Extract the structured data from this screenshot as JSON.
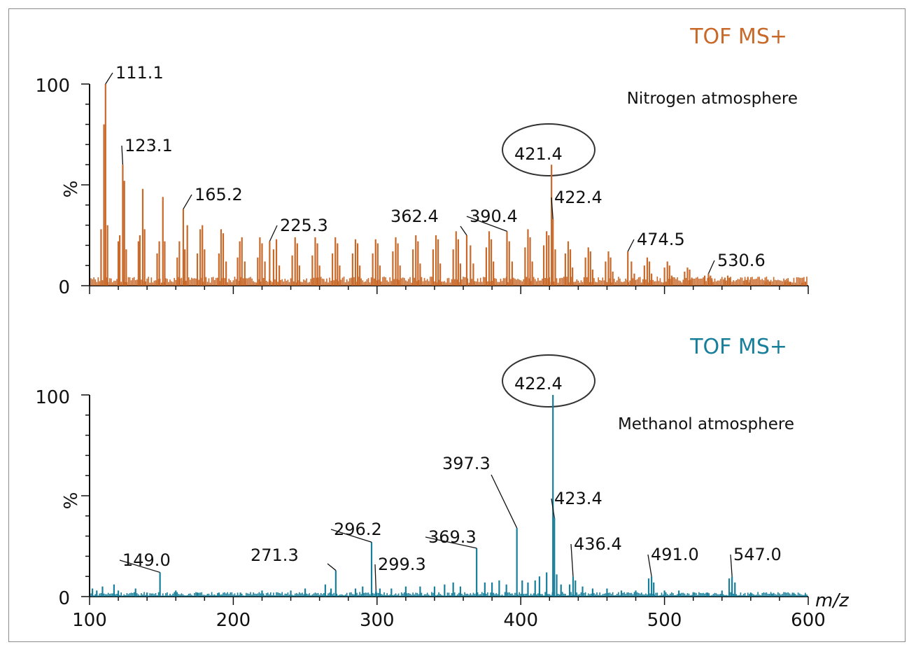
{
  "colors": {
    "nitrogen": "#c8692a",
    "methanol": "#177f9a",
    "axis": "#111111"
  },
  "chart_data": [
    {
      "type": "line",
      "title": "TOF MS+",
      "subtitle": "Nitrogen atmosphere",
      "ylabel": "%",
      "xlim": [
        100,
        600
      ],
      "ylim": [
        0,
        100
      ],
      "yticks": [
        "0",
        "100"
      ],
      "highlighted_peak": "421.4",
      "peak_labels": [
        {
          "mz": 111.1,
          "intensity": 100,
          "label": "111.1"
        },
        {
          "mz": 123.1,
          "intensity": 60,
          "label": "123.1"
        },
        {
          "mz": 165.2,
          "intensity": 38,
          "label": "165.2"
        },
        {
          "mz": 225.3,
          "intensity": 22,
          "label": "225.3"
        },
        {
          "mz": 362.4,
          "intensity": 25,
          "label": "362.4"
        },
        {
          "mz": 390.4,
          "intensity": 27,
          "label": "390.4"
        },
        {
          "mz": 421.4,
          "intensity": 60,
          "label": "421.4"
        },
        {
          "mz": 422.4,
          "intensity": 33,
          "label": "422.4"
        },
        {
          "mz": 474.5,
          "intensity": 17,
          "label": "474.5"
        },
        {
          "mz": 530.6,
          "intensity": 6,
          "label": "530.6"
        }
      ],
      "sticks": [
        [
          108,
          28
        ],
        [
          110,
          80
        ],
        [
          111.1,
          100
        ],
        [
          112.5,
          30
        ],
        [
          120,
          22
        ],
        [
          121,
          25
        ],
        [
          123.1,
          60
        ],
        [
          124.2,
          52
        ],
        [
          125.5,
          18
        ],
        [
          134,
          22
        ],
        [
          135,
          25
        ],
        [
          137,
          48
        ],
        [
          138.3,
          28
        ],
        [
          147,
          16
        ],
        [
          148.5,
          22
        ],
        [
          151,
          44
        ],
        [
          152.3,
          22
        ],
        [
          161,
          14
        ],
        [
          162.5,
          22
        ],
        [
          165.2,
          38
        ],
        [
          166.3,
          18
        ],
        [
          168,
          30
        ],
        [
          175,
          16
        ],
        [
          177,
          28
        ],
        [
          178.5,
          30
        ],
        [
          180,
          18
        ],
        [
          190,
          16
        ],
        [
          191.5,
          28
        ],
        [
          193,
          26
        ],
        [
          195,
          12
        ],
        [
          203,
          14
        ],
        [
          204.5,
          22
        ],
        [
          206,
          24
        ],
        [
          208,
          12
        ],
        [
          217,
          14
        ],
        [
          218.5,
          24
        ],
        [
          220,
          21
        ],
        [
          222,
          12
        ],
        [
          225.3,
          22
        ],
        [
          228,
          18
        ],
        [
          230,
          23
        ],
        [
          232,
          10
        ],
        [
          241,
          15
        ],
        [
          243,
          24
        ],
        [
          244.5,
          21
        ],
        [
          246,
          10
        ],
        [
          255,
          15
        ],
        [
          257,
          24
        ],
        [
          258.5,
          21
        ],
        [
          260,
          10
        ],
        [
          269,
          16
        ],
        [
          271,
          24
        ],
        [
          272.5,
          21
        ],
        [
          274,
          10
        ],
        [
          283,
          16
        ],
        [
          285,
          23
        ],
        [
          286.5,
          21
        ],
        [
          288,
          10
        ],
        [
          297,
          16
        ],
        [
          299,
          23
        ],
        [
          300.5,
          21
        ],
        [
          302,
          10
        ],
        [
          311,
          17
        ],
        [
          313,
          24
        ],
        [
          314.5,
          21
        ],
        [
          316,
          10
        ],
        [
          325,
          18
        ],
        [
          327,
          25
        ],
        [
          328.5,
          22
        ],
        [
          330,
          11
        ],
        [
          339,
          18
        ],
        [
          341,
          25
        ],
        [
          342.5,
          23
        ],
        [
          344,
          11
        ],
        [
          353,
          18
        ],
        [
          355,
          27
        ],
        [
          356.5,
          23
        ],
        [
          358,
          11
        ],
        [
          362.4,
          25
        ],
        [
          365,
          20
        ],
        [
          367,
          11
        ],
        [
          376,
          19
        ],
        [
          378,
          27
        ],
        [
          379.5,
          23
        ],
        [
          381,
          12
        ],
        [
          390.4,
          27
        ],
        [
          392,
          22
        ],
        [
          394,
          12
        ],
        [
          403,
          19
        ],
        [
          405,
          28
        ],
        [
          406.5,
          24
        ],
        [
          408,
          12
        ],
        [
          416,
          20
        ],
        [
          418,
          27
        ],
        [
          419.5,
          25
        ],
        [
          421.4,
          60
        ],
        [
          422.4,
          33
        ],
        [
          424,
          18
        ],
        [
          431,
          16
        ],
        [
          433,
          22
        ],
        [
          434.5,
          18
        ],
        [
          436,
          9
        ],
        [
          445,
          14
        ],
        [
          447,
          19
        ],
        [
          448.5,
          17
        ],
        [
          450,
          8
        ],
        [
          459,
          12
        ],
        [
          461,
          17
        ],
        [
          462.5,
          14
        ],
        [
          464,
          7
        ],
        [
          474.5,
          17
        ],
        [
          477,
          12
        ],
        [
          479,
          6
        ],
        [
          486,
          10
        ],
        [
          488,
          14
        ],
        [
          489.5,
          12
        ],
        [
          491,
          6
        ],
        [
          500,
          9
        ],
        [
          502,
          12
        ],
        [
          503.5,
          10
        ],
        [
          505,
          5
        ],
        [
          514,
          7
        ],
        [
          516,
          9
        ],
        [
          517.5,
          8
        ],
        [
          519,
          4
        ],
        [
          528,
          5
        ],
        [
          530.6,
          6
        ],
        [
          532,
          5
        ],
        [
          533,
          3
        ],
        [
          542,
          4
        ],
        [
          544,
          5
        ],
        [
          545.5,
          4
        ],
        [
          556,
          3
        ],
        [
          558,
          4
        ],
        [
          559.5,
          3
        ],
        [
          570,
          2
        ],
        [
          572,
          3
        ],
        [
          573.5,
          2
        ],
        [
          584,
          2
        ],
        [
          586,
          2.5
        ],
        [
          587.5,
          2
        ],
        [
          596,
          1.5
        ],
        [
          598,
          2
        ]
      ]
    },
    {
      "type": "line",
      "title": "TOF MS+",
      "subtitle": "Methanol atmosphere",
      "ylabel": "%",
      "xlabel": "m/z",
      "xlim": [
        100,
        600
      ],
      "ylim": [
        0,
        100
      ],
      "xticks": [
        "100",
        "200",
        "300",
        "400",
        "500",
        "600"
      ],
      "yticks": [
        "0",
        "100"
      ],
      "highlighted_peak": "422.4",
      "peak_labels": [
        {
          "mz": 149.0,
          "intensity": 12,
          "label": "149.0"
        },
        {
          "mz": 271.3,
          "intensity": 13,
          "label": "271.3"
        },
        {
          "mz": 296.2,
          "intensity": 27,
          "label": "296.2"
        },
        {
          "mz": 299.3,
          "intensity": 3,
          "label": "299.3"
        },
        {
          "mz": 369.3,
          "intensity": 24,
          "label": "369.3"
        },
        {
          "mz": 397.3,
          "intensity": 34,
          "label": "397.3"
        },
        {
          "mz": 422.4,
          "intensity": 100,
          "label": "422.4"
        },
        {
          "mz": 423.4,
          "intensity": 39,
          "label": "423.4"
        },
        {
          "mz": 436.4,
          "intensity": 10,
          "label": "436.4"
        },
        {
          "mz": 491.0,
          "intensity": 10,
          "label": "491.0"
        },
        {
          "mz": 547.0,
          "intensity": 10,
          "label": "547.0"
        }
      ],
      "sticks": [
        [
          102,
          4
        ],
        [
          105,
          3
        ],
        [
          109,
          5
        ],
        [
          117,
          6
        ],
        [
          120,
          3
        ],
        [
          132,
          4
        ],
        [
          140,
          2
        ],
        [
          149.0,
          12
        ],
        [
          160,
          3
        ],
        [
          175,
          2
        ],
        [
          190,
          2
        ],
        [
          205,
          2
        ],
        [
          220,
          3
        ],
        [
          240,
          3
        ],
        [
          250,
          4
        ],
        [
          264,
          6
        ],
        [
          268,
          4
        ],
        [
          271.3,
          13
        ],
        [
          285,
          4
        ],
        [
          290,
          5
        ],
        [
          296.2,
          27
        ],
        [
          299.3,
          3
        ],
        [
          302,
          4
        ],
        [
          310,
          4
        ],
        [
          320,
          5
        ],
        [
          330,
          5
        ],
        [
          340,
          5
        ],
        [
          347,
          6
        ],
        [
          353,
          7
        ],
        [
          358,
          5
        ],
        [
          369.3,
          24
        ],
        [
          375,
          7
        ],
        [
          380,
          7
        ],
        [
          385,
          8
        ],
        [
          390,
          6
        ],
        [
          397.3,
          34
        ],
        [
          401,
          8
        ],
        [
          405,
          7
        ],
        [
          410,
          8
        ],
        [
          413,
          10
        ],
        [
          418,
          12
        ],
        [
          422.4,
          100
        ],
        [
          423.4,
          39
        ],
        [
          425,
          11
        ],
        [
          428,
          6
        ],
        [
          434,
          6
        ],
        [
          436.4,
          10
        ],
        [
          438,
          8
        ],
        [
          443,
          5
        ],
        [
          450,
          4
        ],
        [
          460,
          4
        ],
        [
          470,
          3
        ],
        [
          480,
          3
        ],
        [
          489,
          9
        ],
        [
          491.0,
          10
        ],
        [
          492.5,
          7
        ],
        [
          500,
          3
        ],
        [
          510,
          3
        ],
        [
          520,
          2
        ],
        [
          530,
          2
        ],
        [
          540,
          3
        ],
        [
          545,
          9
        ],
        [
          547.0,
          10
        ],
        [
          549,
          7
        ],
        [
          560,
          2
        ],
        [
          575,
          1.5
        ],
        [
          590,
          1.5
        ],
        [
          598,
          1
        ]
      ]
    }
  ]
}
